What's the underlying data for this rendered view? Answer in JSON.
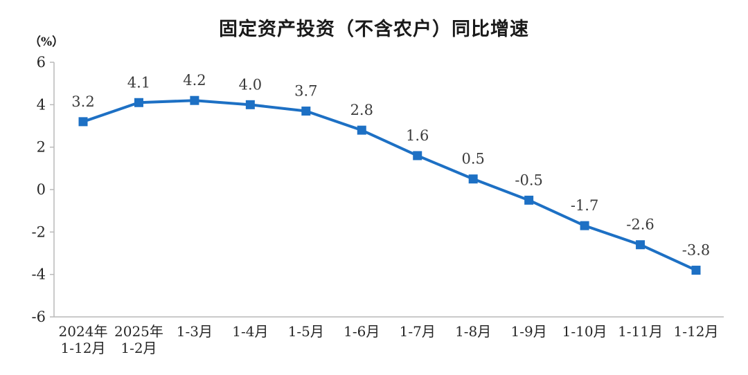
{
  "chart_data": {
    "type": "line",
    "title": "固定资产投资（不含农户）同比增速",
    "ylabel": "（%）",
    "categories": [
      "2024年\n1-12月",
      "2025年\n1-2月",
      "1-3月",
      "1-4月",
      "1-5月",
      "1-6月",
      "1-7月",
      "1-8月",
      "1-9月",
      "1-10月",
      "1-11月",
      "1-12月"
    ],
    "values": [
      3.2,
      4.1,
      4.2,
      4.0,
      3.7,
      2.8,
      1.6,
      0.5,
      -0.5,
      -1.7,
      -2.6,
      -3.8
    ],
    "data_labels": [
      "3.2",
      "4.1",
      "4.2",
      "4.0",
      "3.7",
      "2.8",
      "1.6",
      "0.5",
      "-0.5",
      "-1.7",
      "-2.6",
      "-3.8"
    ],
    "ylim": [
      -6,
      6
    ],
    "ytick_step": 2,
    "yticks": [
      "6",
      "4",
      "2",
      "0",
      "-2",
      "-4",
      "-6"
    ],
    "grid": false,
    "legend": "none",
    "series_name": "固定资产投资（不含农户）同比增速",
    "line_color": "#1d70c4",
    "marker": "square",
    "marker_size": 13,
    "label_color": "#3b3b3b",
    "axis_color": "#b9b9b9",
    "text_color": "#262626"
  }
}
